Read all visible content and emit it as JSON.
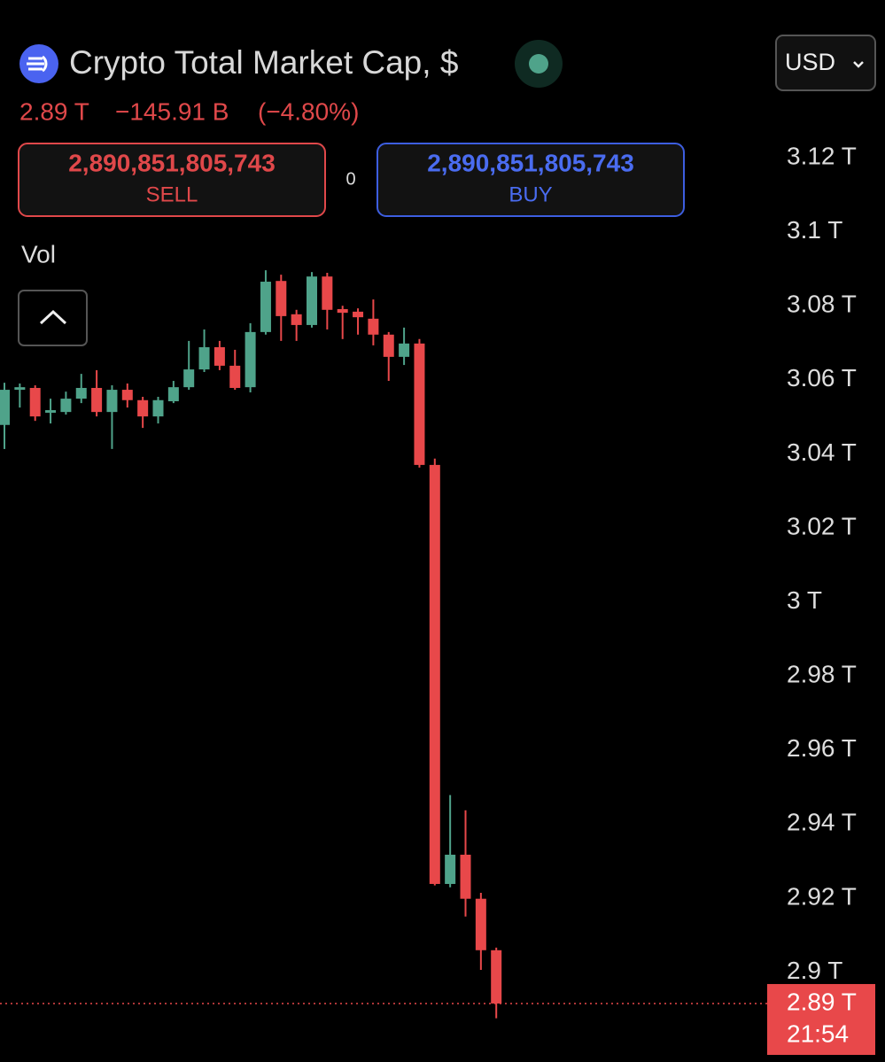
{
  "header": {
    "title": "Crypto Total Market Cap, $",
    "price": "2.89 T",
    "change": "−145.91 B",
    "change_percent": "(−4.80%)",
    "currency": "USD"
  },
  "order": {
    "sell_price": "2,890,851,805,743",
    "sell_label": "SELL",
    "spread": "0",
    "buy_price": "2,890,851,805,743",
    "buy_label": "BUY"
  },
  "indicator": "Vol",
  "chart_data": {
    "type": "candlestick",
    "open": [
      3.0478,
      3.0573,
      3.0578,
      3.0511,
      3.0513,
      3.0549,
      3.0578,
      3.0513,
      3.0573,
      3.0545,
      3.0501,
      3.0542,
      3.058,
      3.0628,
      3.0688,
      3.0638,
      3.058,
      3.0729,
      3.0867,
      3.0777,
      3.0748,
      3.0879,
      3.0791,
      3.0784,
      3.0765,
      3.0722,
      3.0662,
      3.0698,
      3.037,
      2.9238,
      2.9317,
      2.9198,
      2.9059
    ],
    "high": [
      3.0592,
      3.059,
      3.0585,
      3.0549,
      3.0568,
      3.0616,
      3.0626,
      3.0585,
      3.059,
      3.0554,
      3.0554,
      3.0597,
      3.0705,
      3.0736,
      3.0705,
      3.0681,
      3.0753,
      3.0896,
      3.0884,
      3.0789,
      3.0891,
      3.0889,
      3.08,
      3.0793,
      3.0817,
      3.0729,
      3.0741,
      3.071,
      3.0387,
      2.9478,
      2.9437,
      2.9214,
      2.9066
    ],
    "low": [
      3.0413,
      3.0525,
      3.0489,
      3.0482,
      3.0506,
      3.0537,
      3.0501,
      3.0413,
      3.0525,
      3.047,
      3.0482,
      3.0537,
      3.0573,
      3.0621,
      3.0626,
      3.0573,
      3.0566,
      3.0722,
      3.0705,
      3.0705,
      3.0741,
      3.0736,
      3.071,
      3.0722,
      3.0693,
      3.0597,
      3.064,
      3.0363,
      2.9234,
      2.9229,
      2.915,
      2.9006,
      2.8875
    ],
    "close": [
      3.0573,
      3.058,
      3.0501,
      3.0518,
      3.0549,
      3.0578,
      3.0513,
      3.0573,
      3.0545,
      3.0501,
      3.0545,
      3.058,
      3.0628,
      3.0688,
      3.0638,
      3.0578,
      3.0729,
      3.0865,
      3.0772,
      3.0748,
      3.0879,
      3.0789,
      3.0781,
      3.0769,
      3.0722,
      3.0662,
      3.0698,
      3.037,
      2.9238,
      2.9317,
      2.9198,
      2.9059,
      2.8915
    ],
    "up_color": "#4fa38a",
    "down_color": "#e8484a",
    "ylim": [
      2.8757,
      3.1626
    ],
    "yticks": [
      {
        "value": 3.12,
        "label": "3.12 T"
      },
      {
        "value": 3.1,
        "label": "3.1 T"
      },
      {
        "value": 3.08,
        "label": "3.08 T"
      },
      {
        "value": 3.06,
        "label": "3.06 T"
      },
      {
        "value": 3.04,
        "label": "3.04 T"
      },
      {
        "value": 3.02,
        "label": "3.02 T"
      },
      {
        "value": 3,
        "label": "3 T"
      },
      {
        "value": 2.98,
        "label": "2.98 T"
      },
      {
        "value": 2.96,
        "label": "2.96 T"
      },
      {
        "value": 2.94,
        "label": "2.94 T"
      },
      {
        "value": 2.92,
        "label": "2.92 T"
      },
      {
        "value": 2.9,
        "label": "2.9 T"
      }
    ],
    "grid": false,
    "last_price": {
      "value": 2.8915,
      "label": "2.89 T"
    },
    "countdown": "21:54"
  }
}
